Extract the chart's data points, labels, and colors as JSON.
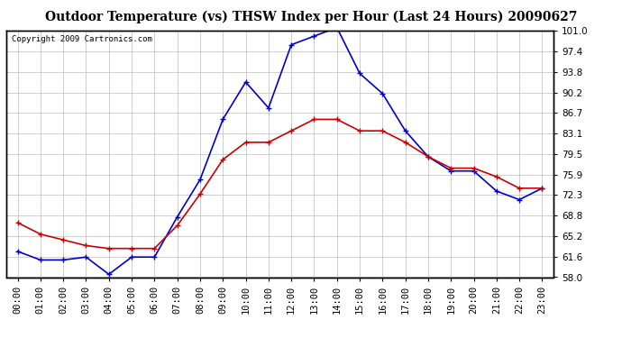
{
  "title": "Outdoor Temperature (vs) THSW Index per Hour (Last 24 Hours) 20090627",
  "copyright": "Copyright 2009 Cartronics.com",
  "hours": [
    "00:00",
    "01:00",
    "02:00",
    "03:00",
    "04:00",
    "05:00",
    "06:00",
    "07:00",
    "08:00",
    "09:00",
    "10:00",
    "11:00",
    "12:00",
    "13:00",
    "14:00",
    "15:00",
    "16:00",
    "17:00",
    "18:00",
    "19:00",
    "20:00",
    "21:00",
    "22:00",
    "23:00"
  ],
  "thsw": [
    62.5,
    61.0,
    61.0,
    61.5,
    58.5,
    61.5,
    61.5,
    68.5,
    75.0,
    85.5,
    92.0,
    87.5,
    98.5,
    100.0,
    101.5,
    93.5,
    90.0,
    83.5,
    79.0,
    76.5,
    76.5,
    73.0,
    71.5,
    73.5
  ],
  "temp": [
    67.5,
    65.5,
    64.5,
    63.5,
    63.0,
    63.0,
    63.0,
    67.0,
    72.5,
    78.5,
    81.5,
    81.5,
    83.5,
    85.5,
    85.5,
    83.5,
    83.5,
    81.5,
    79.0,
    77.0,
    77.0,
    75.5,
    73.5,
    73.5
  ],
  "thsw_color": "#0000cc",
  "temp_color": "#cc0000",
  "background_color": "#ffffff",
  "grid_color": "#bbbbbb",
  "plot_bg_color": "#ffffff",
  "ylim": [
    58.0,
    101.0
  ],
  "yticks": [
    58.0,
    61.6,
    65.2,
    68.8,
    72.3,
    75.9,
    79.5,
    83.1,
    86.7,
    90.2,
    93.8,
    97.4,
    101.0
  ],
  "title_fontsize": 10,
  "tick_fontsize": 7.5,
  "copyright_fontsize": 6.5,
  "marker": "+",
  "markersize": 5,
  "linewidth": 1.2
}
